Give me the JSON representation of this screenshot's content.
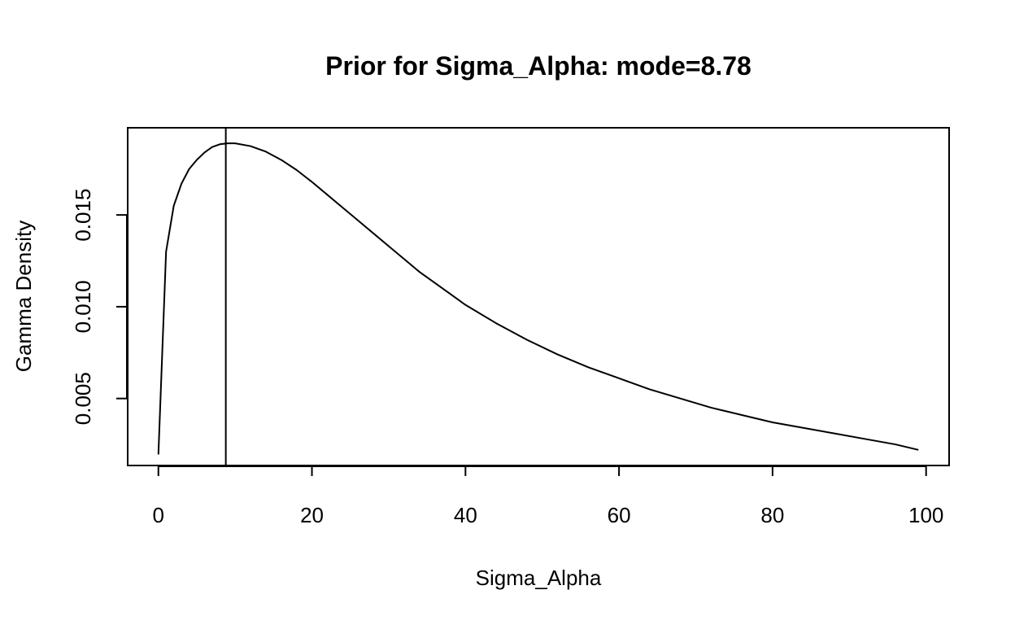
{
  "chart_data": {
    "type": "line",
    "title": "Prior for Sigma_Alpha: mode=8.78",
    "xlabel": "Sigma_Alpha",
    "ylabel": "Gamma Density",
    "xlim": [
      -4,
      103
    ],
    "ylim": [
      0.00135,
      0.01975
    ],
    "x_ticks": [
      0,
      20,
      40,
      60,
      80,
      100
    ],
    "x_tick_labels": [
      "0",
      "20",
      "40",
      "60",
      "80",
      "100"
    ],
    "y_ticks": [
      0.005,
      0.01,
      0.015
    ],
    "y_tick_labels": [
      "0.005",
      "0.010",
      "0.015"
    ],
    "grid": false,
    "legend": "none",
    "mode": 8.78,
    "vline_x": 8.78,
    "series": [
      {
        "values_x": [
          0,
          1,
          2,
          3,
          4,
          5,
          6,
          7,
          8,
          9,
          10,
          12,
          14,
          16,
          18,
          20,
          22,
          24,
          26,
          28,
          30,
          32,
          34,
          36,
          38,
          40,
          44,
          48,
          52,
          56,
          60,
          64,
          68,
          72,
          76,
          80,
          84,
          88,
          92,
          96,
          99
        ],
        "values_y": [
          0.00195,
          0.013,
          0.0155,
          0.0167,
          0.0175,
          0.018,
          0.0184,
          0.0187,
          0.01885,
          0.0189,
          0.0189,
          0.01875,
          0.01845,
          0.018,
          0.01745,
          0.0168,
          0.0161,
          0.0154,
          0.0147,
          0.014,
          0.0133,
          0.0126,
          0.0119,
          0.0113,
          0.0107,
          0.0101,
          0.0091,
          0.0082,
          0.0074,
          0.0067,
          0.0061,
          0.0055,
          0.005,
          0.0045,
          0.0041,
          0.0037,
          0.0034,
          0.0031,
          0.0028,
          0.0025,
          0.0022
        ]
      }
    ]
  }
}
